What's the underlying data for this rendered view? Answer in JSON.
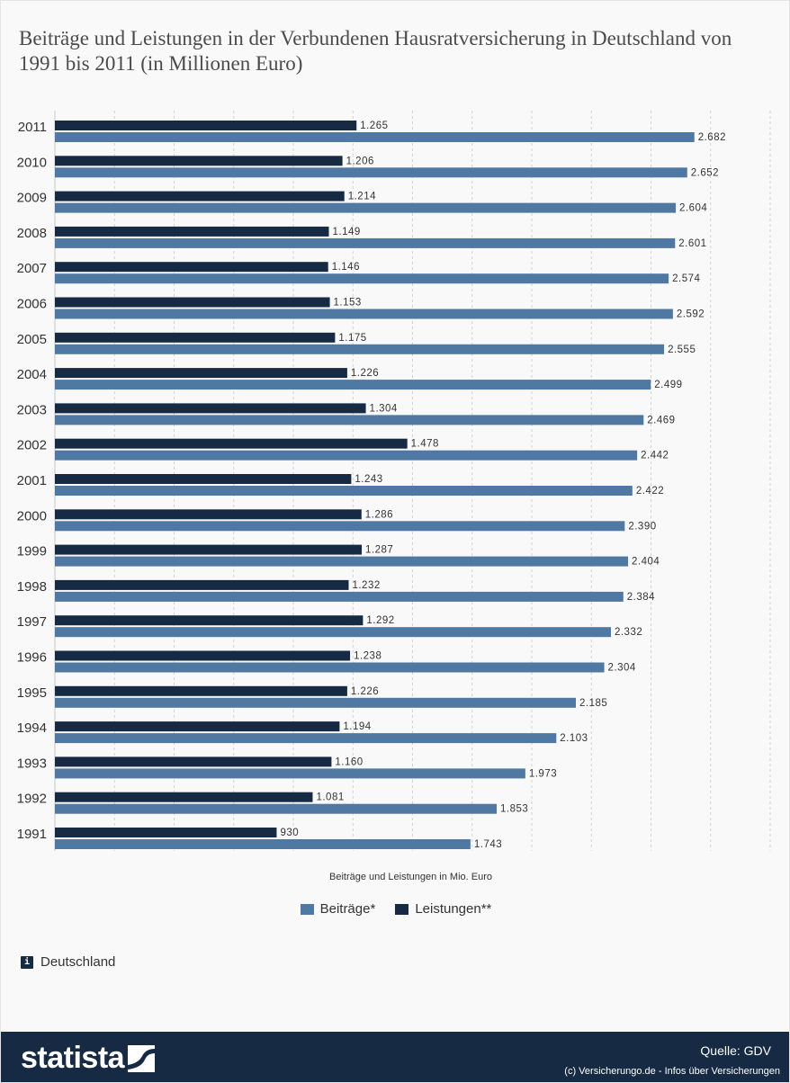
{
  "title": "Beiträge und Leistungen in der Verbundenen Hausratversicherung in Deutschland von 1991 bis 2011 (in Millionen Euro)",
  "chart_data": {
    "type": "bar",
    "orientation": "horizontal",
    "categories": [
      "2011",
      "2010",
      "2009",
      "2008",
      "2007",
      "2006",
      "2005",
      "2004",
      "2003",
      "2002",
      "2001",
      "2000",
      "1999",
      "1998",
      "1997",
      "1996",
      "1995",
      "1994",
      "1993",
      "1992",
      "1991"
    ],
    "series": [
      {
        "name": "Leistungen**",
        "color": "#162a44",
        "values": [
          1265,
          1206,
          1214,
          1149,
          1146,
          1153,
          1175,
          1226,
          1304,
          1478,
          1243,
          1286,
          1287,
          1232,
          1292,
          1238,
          1226,
          1194,
          1160,
          1081,
          930
        ],
        "labels": [
          "1.265",
          "1.206",
          "1.214",
          "1.149",
          "1.146",
          "1.153",
          "1.175",
          "1.226",
          "1.304",
          "1.478",
          "1.243",
          "1.286",
          "1.287",
          "1.232",
          "1.292",
          "1.238",
          "1.226",
          "1.194",
          "1.160",
          "1.081",
          "930"
        ]
      },
      {
        "name": "Beiträge*",
        "color": "#4f79a3",
        "values": [
          2682,
          2652,
          2604,
          2601,
          2574,
          2592,
          2555,
          2499,
          2469,
          2442,
          2422,
          2390,
          2404,
          2384,
          2332,
          2304,
          2185,
          2103,
          1973,
          1853,
          1743
        ],
        "labels": [
          "2.682",
          "2.652",
          "2.604",
          "2.601",
          "2.574",
          "2.592",
          "2.555",
          "2.499",
          "2.469",
          "2.442",
          "2.422",
          "2.390",
          "2.404",
          "2.384",
          "2.332",
          "2.304",
          "2.185",
          "2.103",
          "1.973",
          "1.853",
          "1.743"
        ]
      }
    ],
    "xlabel": "Beiträge und Leistungen in Mio. Euro",
    "xlim": [
      0,
      3000
    ],
    "grid": true,
    "legend_position": "bottom-center"
  },
  "legend": [
    {
      "label": "Beiträge*",
      "color": "#4f79a3"
    },
    {
      "label": "Leistungen**",
      "color": "#162a44"
    }
  ],
  "region": "Deutschland",
  "info_icon_glyph": "i",
  "footer": {
    "logo_text": "statista",
    "source": "Quelle: GDV",
    "copyright": "(c) Versicherungo.de - Infos über Versicherungen"
  }
}
